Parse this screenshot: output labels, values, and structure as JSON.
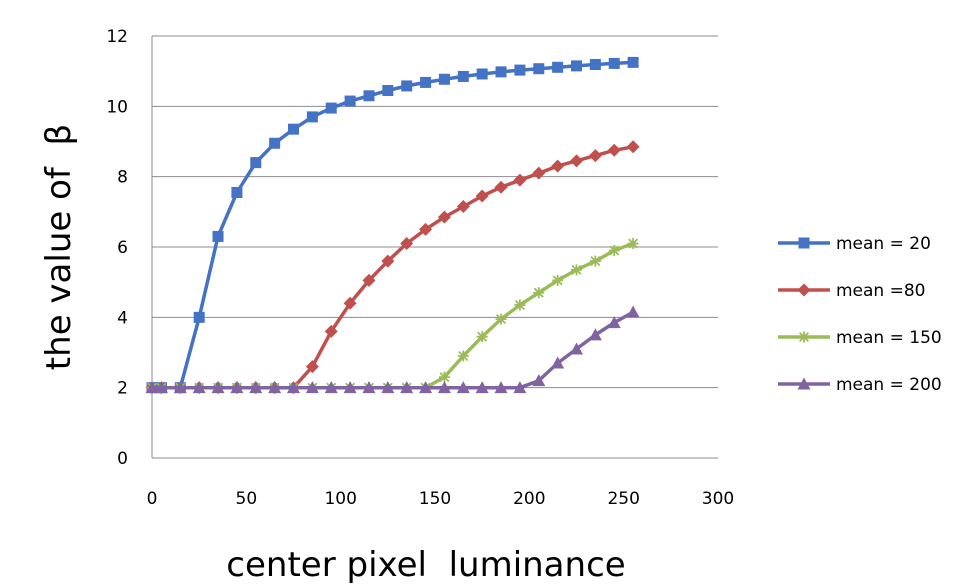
{
  "chart_data": {
    "type": "line",
    "title": "",
    "xlabel": "center pixel  luminance",
    "ylabel": "the value of  β",
    "xlim": [
      0,
      300
    ],
    "ylim": [
      0,
      12
    ],
    "x_ticks": [
      0,
      50,
      100,
      150,
      200,
      250,
      300
    ],
    "y_ticks": [
      0,
      2,
      4,
      6,
      8,
      10,
      12
    ],
    "grid": "horizontal",
    "legend": "right",
    "x": [
      0,
      5,
      15,
      25,
      35,
      45,
      55,
      65,
      75,
      85,
      95,
      105,
      115,
      125,
      135,
      145,
      155,
      165,
      175,
      185,
      195,
      205,
      215,
      225,
      235,
      245,
      255
    ],
    "series": [
      {
        "name": "mean = 20",
        "color": "#4472C4",
        "marker": "square",
        "values": [
          2.0,
          2.0,
          2.0,
          4.0,
          6.3,
          7.55,
          8.4,
          8.95,
          9.35,
          9.7,
          9.95,
          10.15,
          10.3,
          10.45,
          10.58,
          10.68,
          10.77,
          10.85,
          10.92,
          10.98,
          11.03,
          11.07,
          11.11,
          11.15,
          11.19,
          11.22,
          11.25
        ]
      },
      {
        "name": "mean =80",
        "color": "#C0504D",
        "marker": "diamond",
        "values": [
          2.0,
          2.0,
          2.0,
          2.0,
          2.0,
          2.0,
          2.0,
          2.0,
          2.0,
          2.6,
          3.6,
          4.4,
          5.05,
          5.6,
          6.1,
          6.5,
          6.85,
          7.15,
          7.45,
          7.7,
          7.9,
          8.1,
          8.3,
          8.45,
          8.6,
          8.75,
          8.85
        ]
      },
      {
        "name": "mean = 150",
        "color": "#9BBB59",
        "marker": "star",
        "values": [
          2.0,
          2.0,
          2.0,
          2.0,
          2.0,
          2.0,
          2.0,
          2.0,
          2.0,
          2.0,
          2.0,
          2.0,
          2.0,
          2.0,
          2.0,
          2.0,
          2.3,
          2.9,
          3.45,
          3.95,
          4.35,
          4.7,
          5.05,
          5.35,
          5.6,
          5.9,
          6.1
        ]
      },
      {
        "name": "mean = 200",
        "color": "#8064A2",
        "marker": "triangle",
        "values": [
          2.0,
          2.0,
          2.0,
          2.0,
          2.0,
          2.0,
          2.0,
          2.0,
          2.0,
          2.0,
          2.0,
          2.0,
          2.0,
          2.0,
          2.0,
          2.0,
          2.0,
          2.0,
          2.0,
          2.0,
          2.0,
          2.2,
          2.7,
          3.1,
          3.5,
          3.85,
          4.15
        ]
      }
    ]
  }
}
